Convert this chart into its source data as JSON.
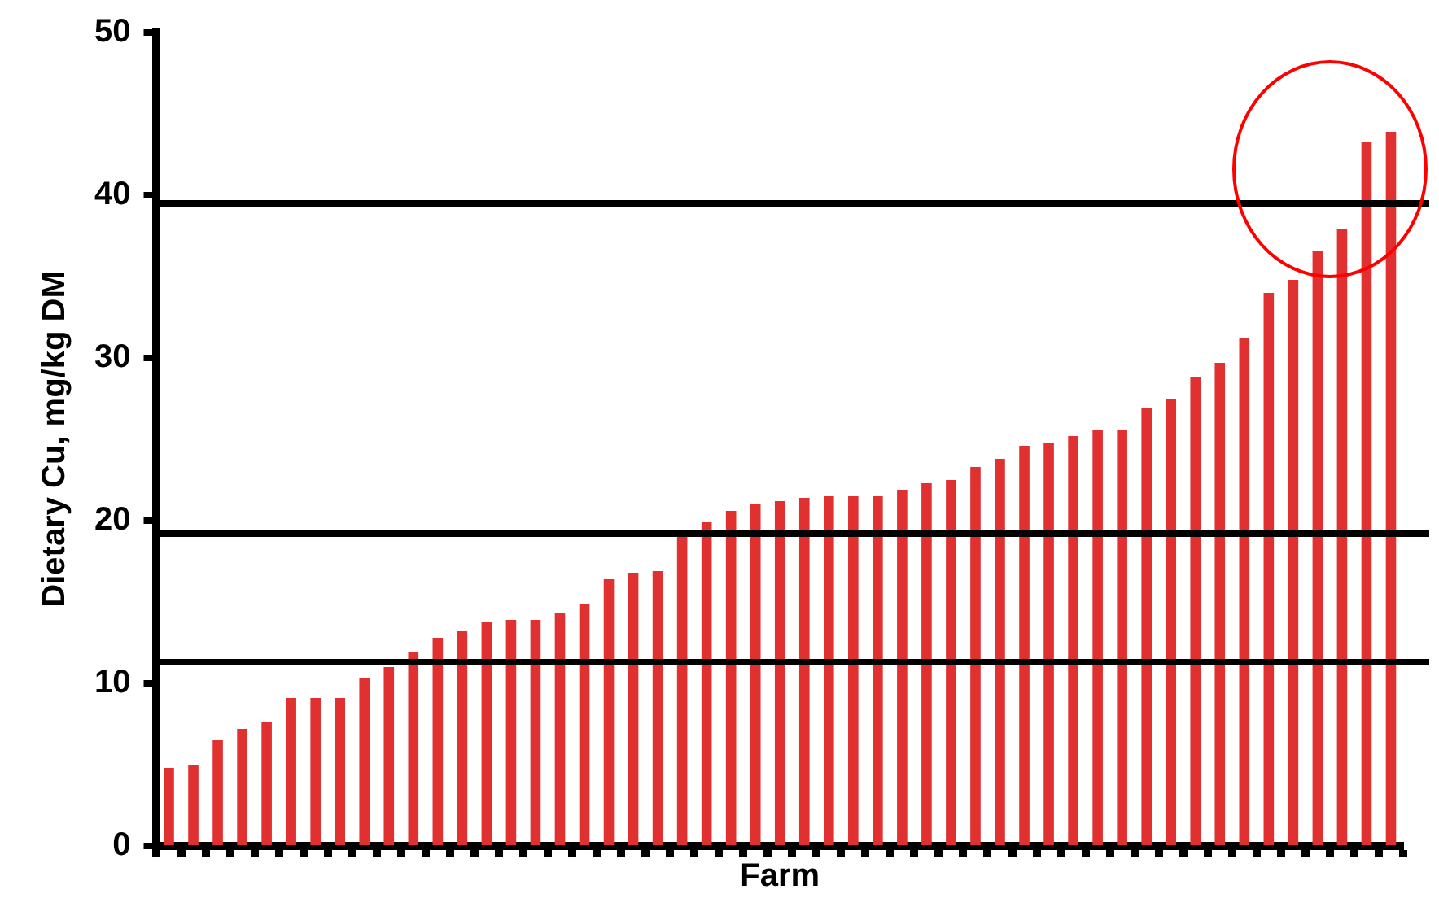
{
  "chart_data": {
    "type": "bar",
    "xlabel": "Farm",
    "ylabel": "Dietary Cu, mg/kg DM",
    "categories": [
      null,
      null,
      null,
      null,
      null,
      null,
      null,
      null,
      null,
      null,
      null,
      null,
      null,
      null,
      null,
      null,
      null,
      null,
      null,
      null,
      null,
      null,
      null,
      null,
      null,
      null,
      null,
      null,
      null,
      null,
      null,
      null,
      null,
      null,
      null,
      null,
      null,
      null,
      null,
      null,
      null,
      null,
      null,
      null,
      null,
      null,
      null,
      null,
      null,
      null,
      null
    ],
    "values": [
      4.8,
      5.0,
      6.5,
      7.2,
      7.6,
      9.1,
      9.1,
      9.1,
      10.3,
      11.0,
      11.9,
      12.8,
      13.2,
      13.8,
      13.9,
      13.9,
      14.3,
      14.9,
      16.4,
      16.8,
      16.9,
      19.0,
      19.9,
      20.6,
      21.0,
      21.2,
      21.4,
      21.5,
      21.5,
      21.5,
      21.9,
      22.3,
      22.5,
      23.3,
      23.8,
      24.6,
      24.8,
      25.2,
      25.6,
      25.6,
      26.9,
      27.5,
      28.8,
      29.7,
      31.2,
      34.0,
      34.8,
      36.6,
      37.9,
      43.3,
      43.9
    ],
    "color": "#e03030",
    "ylim": [
      0,
      50
    ],
    "yticks": [
      0,
      10,
      20,
      30,
      40,
      50
    ],
    "ref_lines": [
      {
        "axis": "y",
        "value": 11.3,
        "color": "#000000"
      },
      {
        "axis": "y",
        "value": 19.2,
        "color": "#000000"
      },
      {
        "axis": "y",
        "value": 39.5,
        "color": "#000000"
      }
    ],
    "grid": false,
    "legend": false,
    "tick_labels": "y"
  }
}
